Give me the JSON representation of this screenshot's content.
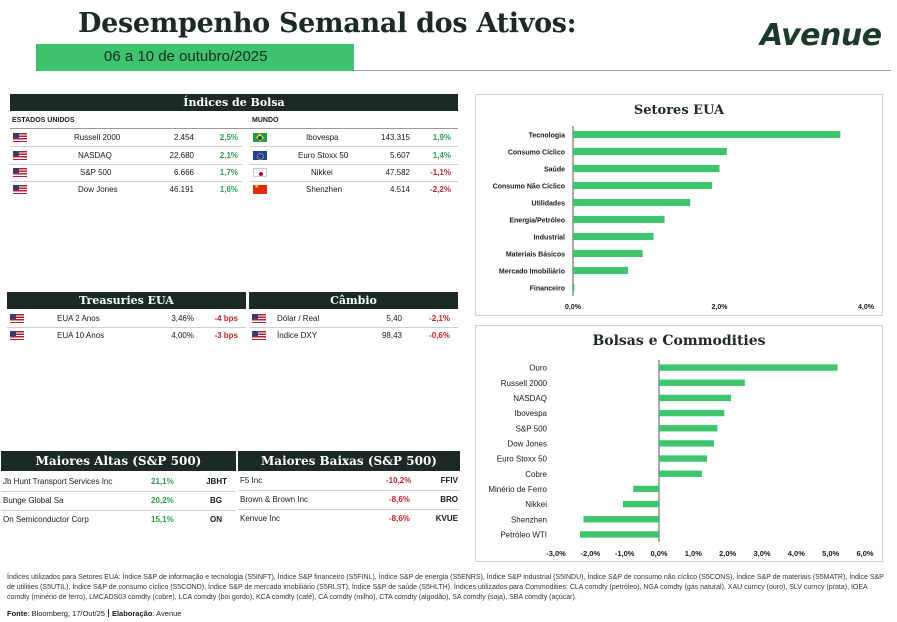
{
  "header": {
    "title": "Desempenho Semanal dos Ativos:",
    "subtitle": "06 a 10 de outubro/2025",
    "logo": "Avenue"
  },
  "indices": {
    "title": "Índices de Bolsa",
    "us_label": "ESTADOS UNIDOS",
    "world_label": "MUNDO",
    "us": [
      {
        "flag": "us-flag",
        "name": "Russell 2000",
        "value": "2.454",
        "change": "2,5%"
      },
      {
        "flag": "us-flag",
        "name": "NASDAQ",
        "value": "22.680",
        "change": "2,1%"
      },
      {
        "flag": "us-flag",
        "name": "S&P 500",
        "value": "6.666",
        "change": "1,7%"
      },
      {
        "flag": "us-flag",
        "name": "Dow Jones",
        "value": "46.191",
        "change": "1,6%"
      }
    ],
    "world": [
      {
        "flag": "brazil-flag",
        "name": "Ibovespa",
        "value": "143.315",
        "change": "1,9%"
      },
      {
        "flag": "eu-flag",
        "name": "Euro Stoxx 50",
        "value": "5.607",
        "change": "1,4%"
      },
      {
        "flag": "japan-flag",
        "name": "Nikkei",
        "value": "47.582",
        "change": "-1,1%"
      },
      {
        "flag": "china-flag",
        "name": "Shenzhen",
        "value": "4.514",
        "change": "-2,2%"
      }
    ]
  },
  "treasuries": {
    "title": "Treasuries EUA",
    "rows": [
      {
        "name": "EUA 2 Anos",
        "value": "3,46%",
        "change": "-4 bps"
      },
      {
        "name": "EUA 10 Anos",
        "value": "4,00%",
        "change": "-3 bps"
      }
    ]
  },
  "fx": {
    "title": "Câmbio",
    "rows": [
      {
        "name": "Dólar / Real",
        "value": "5,40",
        "change": "-2,1%"
      },
      {
        "name": "Índice DXY",
        "value": "98,43",
        "change": "-0,6%"
      }
    ]
  },
  "gainers": {
    "title": "Maiores Altas (S&P 500)",
    "rows": [
      {
        "name": "Jb Hunt Transport Services Inc",
        "change": "21,1%",
        "ticker": "JBHT"
      },
      {
        "name": "Bunge Global Sa",
        "change": "20,2%",
        "ticker": "BG"
      },
      {
        "name": "On Semiconductor Corp",
        "change": "15,1%",
        "ticker": "ON"
      }
    ]
  },
  "losers": {
    "title": "Maiores Baixas (S&P 500)",
    "rows": [
      {
        "name": "F5 Inc",
        "change": "-10,2%",
        "ticker": "FFIV"
      },
      {
        "name": "Brown & Brown Inc",
        "change": "-8,6%",
        "ticker": "BRO"
      },
      {
        "name": "Kenvue Inc",
        "change": "-8,6%",
        "ticker": "KVUE"
      }
    ]
  },
  "chart_data": [
    {
      "type": "bar",
      "orientation": "horizontal",
      "title": "Setores EUA",
      "categories": [
        "Tecnologia",
        "Consumo Cíclico",
        "Saúde",
        "Consumo Não Cíclico",
        "Utilidades",
        "Energia/Petróleo",
        "Industrial",
        "Materiais Básicos",
        "Mercado Imobiliário",
        "Financeiro"
      ],
      "values": [
        3.65,
        2.1,
        2.0,
        1.9,
        1.6,
        1.25,
        1.1,
        0.95,
        0.75,
        0.02
      ],
      "xlim": [
        0,
        4
      ],
      "ticks": [
        0,
        2,
        4
      ],
      "tick_labels": [
        "0,0%",
        "2,0%",
        "4,0%"
      ],
      "color": "#3ec46d"
    },
    {
      "type": "bar",
      "orientation": "horizontal",
      "title": "Bolsas e Commodities",
      "categories": [
        "Ouro",
        "Russell 2000",
        "NASDAQ",
        "Ibovespa",
        "S&P 500",
        "Dow Jones",
        "Euro Stoxx 50",
        "Cobre",
        "Minério de Ferro",
        "Nikkei",
        "Shenzhen",
        "Petróleo WTI"
      ],
      "values": [
        5.2,
        2.5,
        2.1,
        1.9,
        1.7,
        1.6,
        1.4,
        1.25,
        -0.75,
        -1.05,
        -2.2,
        -2.3
      ],
      "xlim": [
        -3,
        6
      ],
      "ticks": [
        -3,
        -2,
        -1,
        0,
        1,
        2,
        3,
        4,
        5,
        6
      ],
      "tick_labels": [
        "-3,0%",
        "-2,0%",
        "-1,0%",
        "0,0%",
        "1,0%",
        "2,0%",
        "3,0%",
        "4,0%",
        "5,0%",
        "6,0%"
      ],
      "color": "#3ec46d"
    }
  ],
  "footer": {
    "notes": "Índices utilizados para Setores EUA: Índice S&P de informação e tecnologia (S5INFT), Índice S&P financeiro (S5FINL), Índice S&P de energia (S5ENRS), Índice S&P industrial (S5INDU), Índice S&P de consumo não cíclico (S5CONS), Índice S&P de materiais (S5MATR), Índice S&P de utilities (S5UTIL), Índice S&P de consumo cíclico (S5COND), Índice S&P de mercado imobiliário (S5RLST), Índice S&P de saúde (S5HLTH). Índices utilizados para Commodities: CLA comdty (petróleo), NGA comdty (gás natural), XAU curncy (ouro), SLV curncy (prata), IOEA comdty (minério de ferro), LMCADS03 comdty (cobre), LCA comdty (boi gordo), KCA comdty (café), CA comdty (milho), CTA comdty (algodão), SA comdty (soja), SBA comdty (açúcar).",
    "source_label": "Fonte",
    "source": ": Bloomberg, 17/Out/25",
    "made_label": "Elaboração",
    "made": ": Avenue"
  }
}
